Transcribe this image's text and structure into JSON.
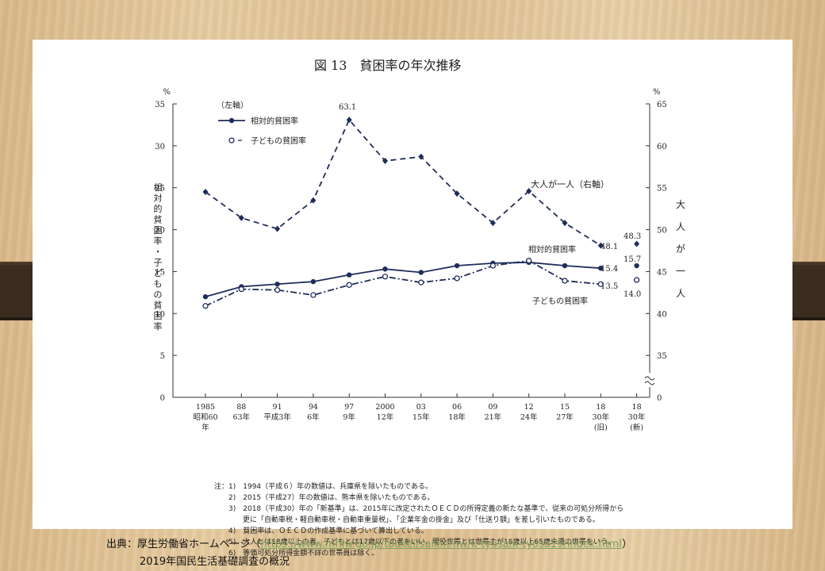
{
  "title": "図 13　貧困率の年次推移",
  "left_axis_unit": "%",
  "right_axis_unit": "%",
  "left_axis_label": "相対的貧困率・子どもの貧困率",
  "right_axis_label": "大人が一人",
  "legend_header": "（左軸）",
  "legend": [
    "相対的貧困率",
    "子どもの貧困率"
  ],
  "annotations": {
    "adult_series": "大人が一人（右軸）",
    "relative_series": "相対的貧困率",
    "child_series": "子どもの貧困率",
    "peak": "63.1",
    "adult_old": "48.1",
    "adult_new": "48.3",
    "rel_old": "15.4",
    "rel_new": "15.7",
    "child_old": "13.5",
    "child_new": "14.0"
  },
  "notes": [
    "注：1)　1994（平成６）年の数値は、兵庫県を除いたものである。",
    "　　2)　2015（平成27）年の数値は、熊本県を除いたものである。",
    "　　3)　2018（平成30）年の「新基準」は、2015年に改定されたＯＥＣＤの所得定義の新たな基準で、従来の可処分所得から",
    "　　　　更に「自動車税・軽自動車税・自動車重量税」、「企業年金の掛金」及び「仕送り額」を差し引いたものである。",
    "　　4)　貧困率は、ＯＥＣＤの作成基準に基づいて算出している。",
    "　　5)　大人とは18歳以上の者、子どもとは17歳以下の者をいい、現役世帯とは世帯主が18歳以上65歳未満の世帯をいう。",
    "　　6)　等価可処分所得金額不詳の世帯員は除く。"
  ],
  "source": {
    "prefix": "出典：厚生労働省ホームページ（",
    "url": "https://www.mhlw.go.jp/toukei/saikin/hw/k-tyosa/k-tyosa19/index.html",
    "suffix": "）",
    "line2": "2019年国民生活基礎調査の概況"
  },
  "colors": {
    "series": "#1f2d5a",
    "axis": "#333333"
  },
  "chart_data": {
    "type": "line",
    "categories": [
      [
        "1985",
        "昭和60",
        "年"
      ],
      [
        "88",
        "63年"
      ],
      [
        "91",
        "平成3年"
      ],
      [
        "94",
        "6年"
      ],
      [
        "97",
        "9年"
      ],
      [
        "2000",
        "12年"
      ],
      [
        "03",
        "15年"
      ],
      [
        "06",
        "18年"
      ],
      [
        "09",
        "21年"
      ],
      [
        "12",
        "24年"
      ],
      [
        "15",
        "27年"
      ],
      [
        "18",
        "30年",
        "(旧)"
      ],
      [
        "18",
        "30年",
        "(新)"
      ]
    ],
    "left_ylim": [
      0,
      35
    ],
    "left_yticks": [
      0,
      5,
      10,
      15,
      20,
      25,
      30,
      35
    ],
    "right_ylim_labels": [
      0,
      35,
      40,
      45,
      50,
      55,
      60,
      65
    ],
    "series": [
      {
        "name": "相対的貧困率",
        "axis": "left",
        "style": "solid",
        "marker": "filled-circle",
        "values": [
          12.0,
          13.2,
          13.5,
          13.8,
          14.6,
          15.3,
          14.9,
          15.7,
          16.0,
          16.1,
          15.7,
          15.4,
          15.7
        ]
      },
      {
        "name": "子どもの貧困率",
        "axis": "left",
        "style": "dash-dot",
        "marker": "open-circle",
        "values": [
          10.9,
          12.9,
          12.8,
          12.2,
          13.4,
          14.4,
          13.7,
          14.2,
          15.7,
          16.3,
          13.9,
          13.5,
          14.0
        ]
      },
      {
        "axis": "right",
        "style": "dashed",
        "marker": "filled-diamond",
        "values": [
          54.5,
          51.4,
          50.1,
          53.5,
          63.1,
          58.2,
          58.7,
          54.3,
          50.8,
          54.6,
          50.8,
          48.1,
          48.3
        ]
      }
    ]
  }
}
